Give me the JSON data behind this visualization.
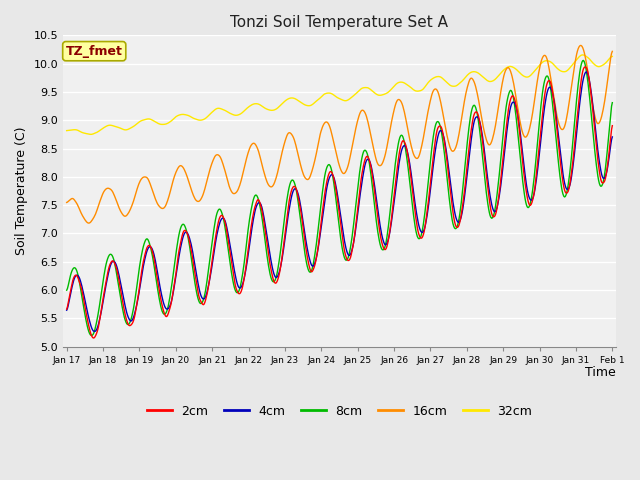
{
  "title": "Tonzi Soil Temperature Set A",
  "xlabel": "Time",
  "ylabel": "Soil Temperature (C)",
  "ylim": [
    5.0,
    10.5
  ],
  "xlim": [
    -0.1,
    15.1
  ],
  "x_tick_labels": [
    "Jan 17",
    "Jan 18",
    "Jan 19",
    "Jan 20",
    "Jan 21",
    "Jan 22",
    "Jan 23",
    "Jan 24",
    "Jan 25",
    "Jan 26",
    "Jan 27",
    "Jan 28",
    "Jan 29",
    "Jan 30",
    "Jan 31",
    "Feb 1"
  ],
  "annotation_text": "TZ_fmet",
  "annotation_fg": "#8B0000",
  "annotation_bg": "#FFFFA0",
  "fig_bg": "#E8E8E8",
  "plot_bg": "#F0F0F0",
  "colors": {
    "2cm": "#FF0000",
    "4cm": "#0000BB",
    "8cm": "#00BB00",
    "16cm": "#FF8C00",
    "32cm": "#FFE800"
  },
  "linewidth": 1.0,
  "legend_labels": [
    "2cm",
    "4cm",
    "8cm",
    "16cm",
    "32cm"
  ],
  "yticks": [
    5.0,
    5.5,
    6.0,
    6.5,
    7.0,
    7.5,
    8.0,
    8.5,
    9.0,
    9.5,
    10.0,
    10.5
  ]
}
